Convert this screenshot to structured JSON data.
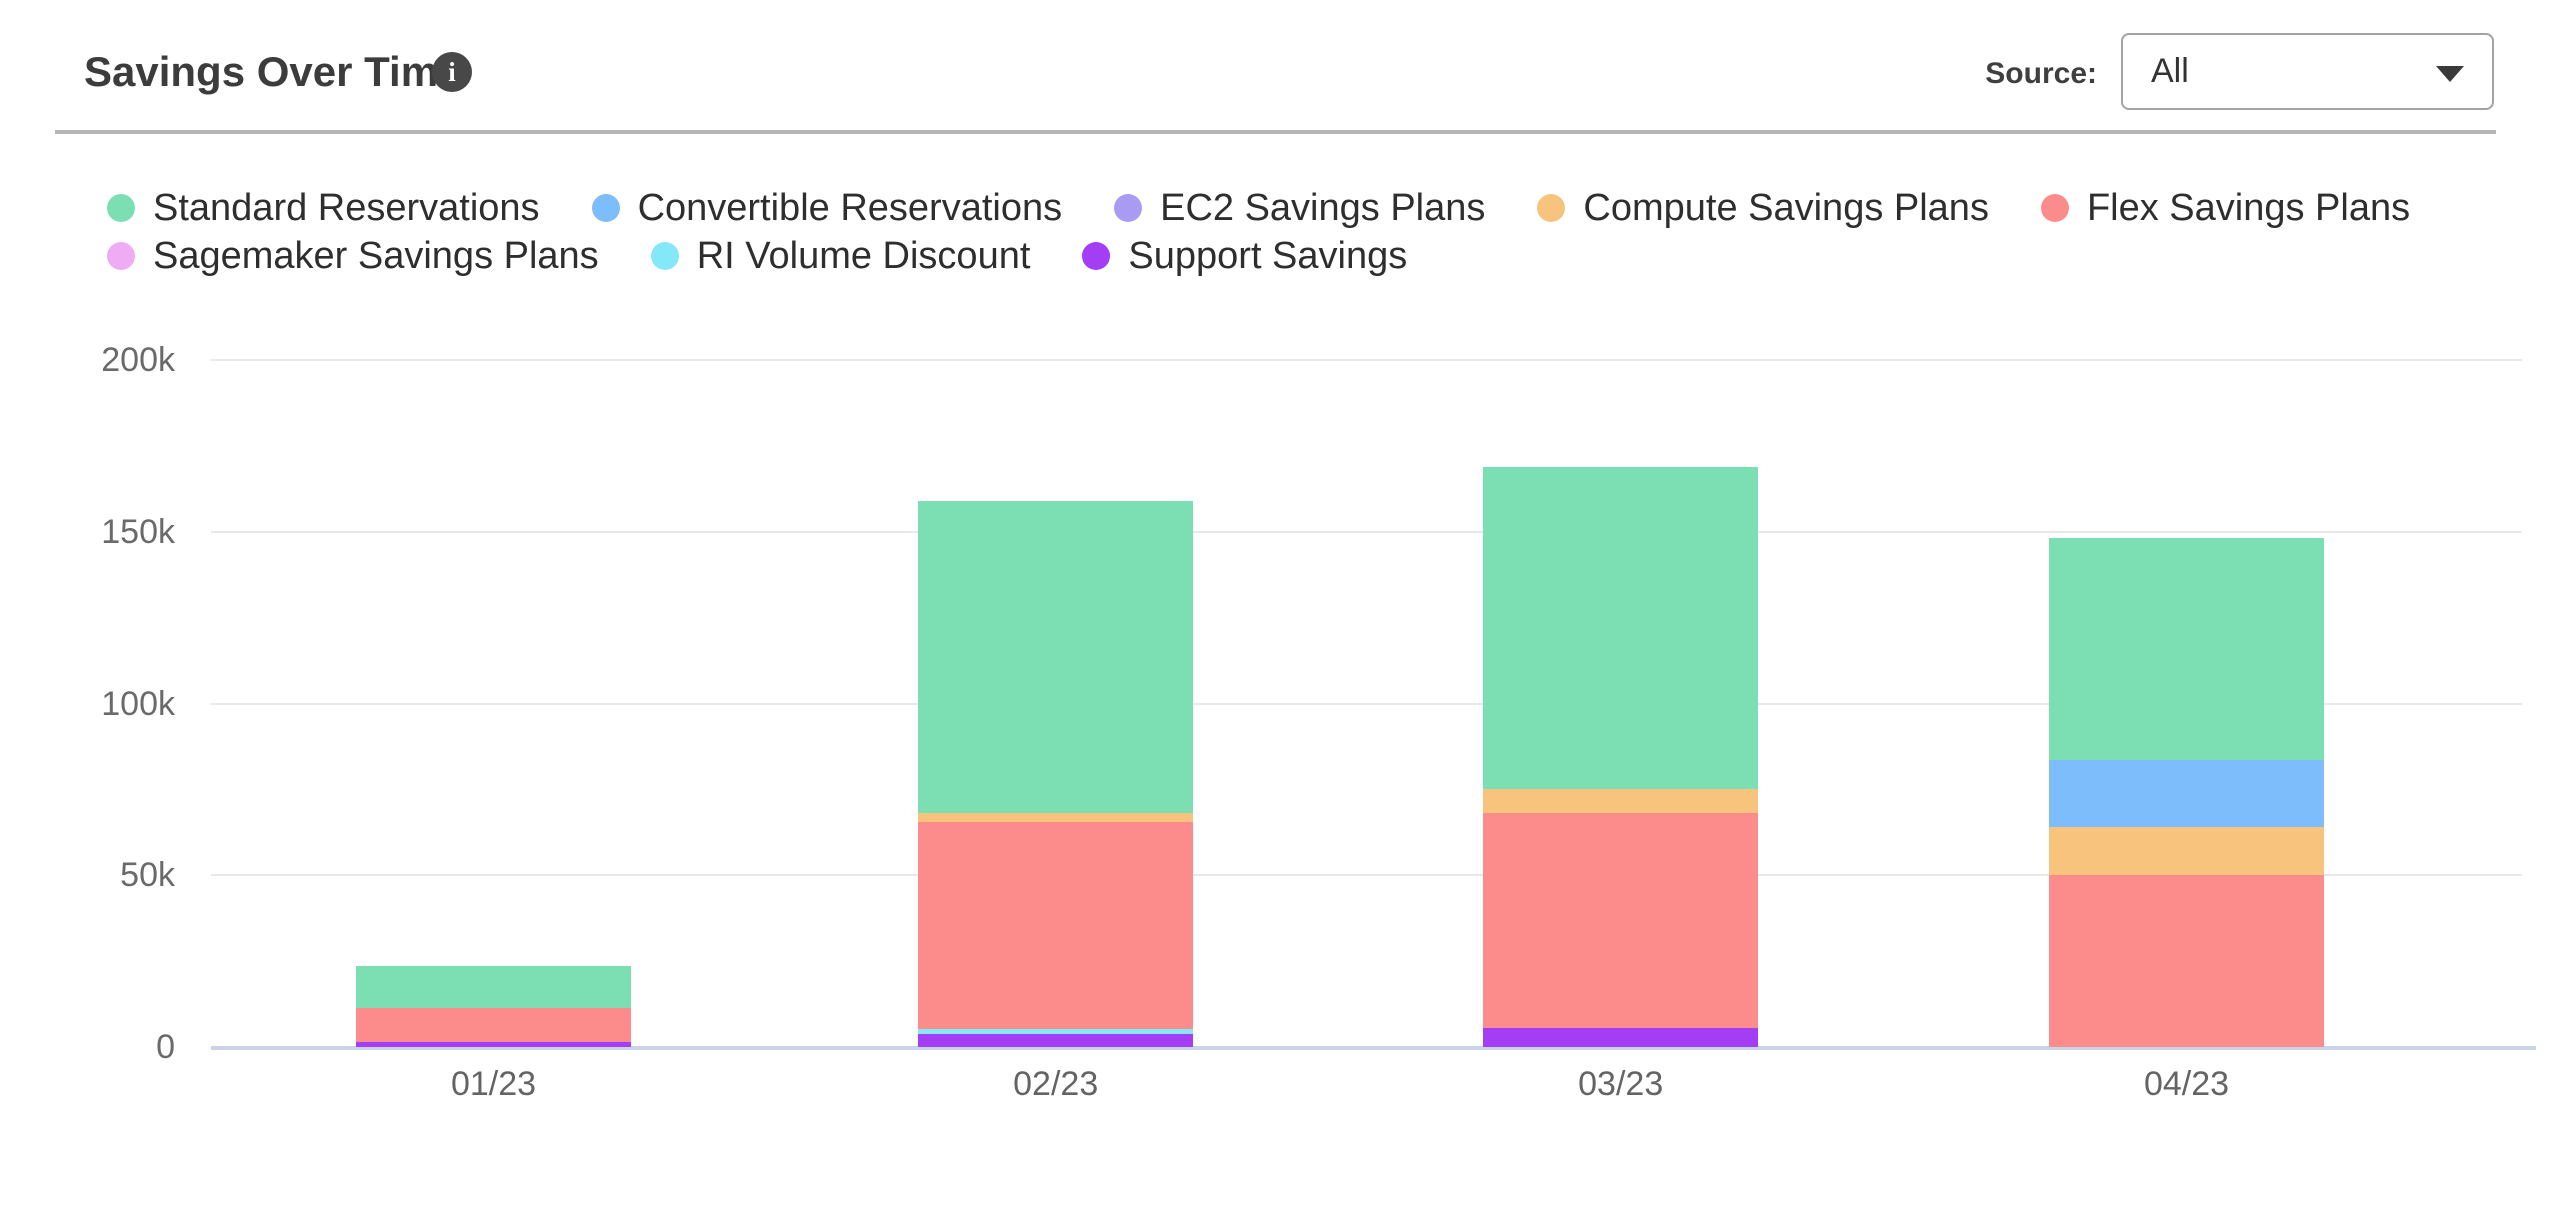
{
  "header": {
    "title": "Savings Over Time",
    "info_icon_glyph": "i",
    "source_label": "Source:",
    "source_value": "All"
  },
  "chart_data": {
    "type": "bar",
    "stacked": true,
    "title": "Savings Over Time",
    "categories": [
      "01/23",
      "02/23",
      "03/23",
      "04/23"
    ],
    "series": [
      {
        "name": "Standard Reservations",
        "color": "#7CDFB4",
        "values": [
          12100,
          91000,
          94000,
          64600
        ]
      },
      {
        "name": "Convertible Reservations",
        "color": "#7DBDFB",
        "values": [
          0,
          0,
          0,
          19400
        ]
      },
      {
        "name": "EC2 Savings Plans",
        "color": "#A89BF1",
        "values": [
          0,
          0,
          0,
          0
        ]
      },
      {
        "name": "Compute Savings Plans",
        "color": "#F8C37D",
        "values": [
          0,
          2600,
          6800,
          13900
        ]
      },
      {
        "name": "Flex Savings Plans",
        "color": "#FC8C8B",
        "values": [
          9900,
          60200,
          62800,
          50200
        ]
      },
      {
        "name": "Sagemaker Savings Plans",
        "color": "#EFABF3",
        "values": [
          0,
          0,
          0,
          0
        ]
      },
      {
        "name": "RI Volume Discount",
        "color": "#85E8F9",
        "values": [
          0,
          1300,
          0,
          0
        ]
      },
      {
        "name": "Support Savings",
        "color": "#A43EF5",
        "values": [
          1500,
          3900,
          5400,
          0
        ]
      }
    ],
    "stack_order_bottom_to_top": [
      "Support Savings",
      "RI Volume Discount",
      "Sagemaker Savings Plans",
      "Flex Savings Plans",
      "Compute Savings Plans",
      "EC2 Savings Plans",
      "Convertible Reservations",
      "Standard Reservations"
    ],
    "y_ticks": {
      "labels": [
        "0",
        "50k",
        "100k",
        "150k",
        "200k"
      ],
      "values": [
        0,
        50000,
        100000,
        150000,
        200000
      ]
    },
    "ylim": [
      0,
      200000
    ],
    "xlabel": "",
    "ylabel": "",
    "grid": true,
    "legend_position": "top",
    "legend_rows": [
      [
        0,
        1,
        2,
        3,
        4
      ],
      [
        5,
        6,
        7
      ]
    ]
  },
  "colors": {
    "grid": "#e9e9e9",
    "baseline": "#c9d3ea",
    "divider": "#b6b6b6",
    "title_text": "#3c3c3c",
    "legend_text": "#2e2e2e",
    "axis_text": "#6a6a6a"
  }
}
